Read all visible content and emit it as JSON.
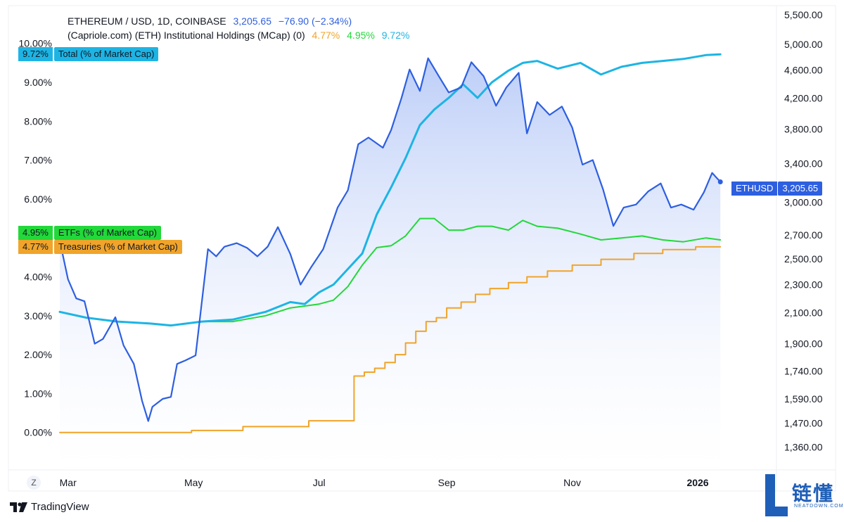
{
  "header": {
    "symbol": "ETHEREUM / USD, 1D, COINBASE",
    "price": "3,205.65",
    "change": "−76.90 (−2.34%)",
    "indicator": "(Capriole.com) (ETH) Institutional Holdings (MCap) (0)",
    "ind_treasuries": "4.77%",
    "ind_etfs": "4.95%",
    "ind_total": "9.72%"
  },
  "labels": {
    "total": {
      "value": "9.72%",
      "name": "Total (% of Market Cap)"
    },
    "etfs": {
      "value": "4.95%",
      "name": "ETFs (% of Market Cap)"
    },
    "treasuries": {
      "value": "4.77%",
      "name": "Treasuries (% of Market Cap)"
    },
    "price": {
      "name": "ETHUSD",
      "value": "3,205.65"
    }
  },
  "colors": {
    "price": "#2d5fe0",
    "total": "#1db4e4",
    "etfs": "#22d83a",
    "treasuries": "#f0a42a",
    "fill": "#c8d6fa"
  },
  "footer": {
    "brand": "TradingView",
    "z_button": "Z",
    "watermark_cn": "链懂",
    "watermark_en": "NEATDOWN.COM"
  },
  "chart_data": {
    "type": "line",
    "x_axis": {
      "ticks": [
        "Mar",
        "May",
        "Jul",
        "Sep",
        "Nov",
        "2026"
      ],
      "range": [
        "2025-02-25",
        "2026-01-15"
      ]
    },
    "left_axis": {
      "ticks": [
        "0.00%",
        "1.00%",
        "2.00%",
        "3.00%",
        "4.00%",
        "5.00%",
        "6.00%",
        "7.00%",
        "8.00%",
        "9.00%",
        "10.00%"
      ],
      "ylim": [
        0,
        10
      ]
    },
    "right_axis": {
      "scale": "log",
      "ticks": [
        "1,360.00",
        "1,470.00",
        "1,590.00",
        "1,740.00",
        "1,900.00",
        "2,100.00",
        "2,300.00",
        "2,500.00",
        "2,700.00",
        "3,000.00",
        "3,400.00",
        "3,800.00",
        "4,200.00",
        "4,600.00",
        "5,000.00",
        "5,500.00"
      ]
    },
    "series": [
      {
        "name": "ETHUSD",
        "axis": "right",
        "x": [
          "2025-02-25",
          "2025-03-01",
          "2025-03-05",
          "2025-03-09",
          "2025-03-14",
          "2025-03-18",
          "2025-03-24",
          "2025-03-28",
          "2025-04-02",
          "2025-04-06",
          "2025-04-09",
          "2025-04-11",
          "2025-04-16",
          "2025-04-20",
          "2025-04-23",
          "2025-04-27",
          "2025-05-02",
          "2025-05-08",
          "2025-05-12",
          "2025-05-16",
          "2025-05-22",
          "2025-05-27",
          "2025-06-01",
          "2025-06-06",
          "2025-06-11",
          "2025-06-17",
          "2025-06-22",
          "2025-06-27",
          "2025-07-03",
          "2025-07-10",
          "2025-07-15",
          "2025-07-20",
          "2025-07-25",
          "2025-08-01",
          "2025-08-05",
          "2025-08-10",
          "2025-08-14",
          "2025-08-19",
          "2025-08-23",
          "2025-08-28",
          "2025-09-02",
          "2025-09-08",
          "2025-09-13",
          "2025-09-19",
          "2025-09-25",
          "2025-09-30",
          "2025-10-06",
          "2025-10-10",
          "2025-10-15",
          "2025-10-21",
          "2025-10-27",
          "2025-11-01",
          "2025-11-06",
          "2025-11-11",
          "2025-11-16",
          "2025-11-21",
          "2025-11-26",
          "2025-12-02",
          "2025-12-08",
          "2025-12-14",
          "2025-12-19",
          "2025-12-24",
          "2025-12-30",
          "2026-01-04",
          "2026-01-08",
          "2026-01-12"
        ],
        "values": [
          2650,
          2340,
          2200,
          2180,
          1900,
          1930,
          2070,
          1890,
          1780,
          1580,
          1480,
          1550,
          1590,
          1600,
          1780,
          1800,
          1830,
          2580,
          2520,
          2600,
          2630,
          2590,
          2520,
          2600,
          2770,
          2540,
          2300,
          2430,
          2580,
          2950,
          3120,
          3620,
          3700,
          3580,
          3790,
          4200,
          4610,
          4300,
          4780,
          4520,
          4280,
          4350,
          4720,
          4510,
          4100,
          4350,
          4560,
          3750,
          4150,
          3980,
          4090,
          3820,
          3390,
          3440,
          3130,
          2780,
          2950,
          2980,
          3110,
          3190,
          2950,
          2980,
          2930,
          3100,
          3300,
          3205.65
        ]
      },
      {
        "name": "Total (% of Market Cap)",
        "axis": "left",
        "x": [
          "2025-02-25",
          "2025-03-10",
          "2025-03-25",
          "2025-04-10",
          "2025-04-20",
          "2025-05-05",
          "2025-05-20",
          "2025-06-05",
          "2025-06-17",
          "2025-06-24",
          "2025-07-01",
          "2025-07-08",
          "2025-07-15",
          "2025-07-22",
          "2025-07-29",
          "2025-08-05",
          "2025-08-12",
          "2025-08-19",
          "2025-08-26",
          "2025-09-02",
          "2025-09-09",
          "2025-09-16",
          "2025-09-23",
          "2025-10-01",
          "2025-10-08",
          "2025-10-15",
          "2025-10-25",
          "2025-11-05",
          "2025-11-15",
          "2025-11-25",
          "2025-12-05",
          "2025-12-15",
          "2025-12-25",
          "2026-01-05",
          "2026-01-12"
        ],
        "values": [
          3.1,
          2.95,
          2.85,
          2.8,
          2.75,
          2.85,
          2.9,
          3.1,
          3.35,
          3.3,
          3.6,
          3.8,
          4.2,
          4.6,
          5.6,
          6.3,
          7.05,
          7.9,
          8.3,
          8.6,
          8.95,
          8.6,
          9.0,
          9.3,
          9.5,
          9.55,
          9.35,
          9.5,
          9.2,
          9.4,
          9.5,
          9.55,
          9.6,
          9.7,
          9.72
        ]
      },
      {
        "name": "ETFs (% of Market Cap)",
        "axis": "left",
        "x": [
          "2025-02-25",
          "2025-03-10",
          "2025-03-25",
          "2025-04-10",
          "2025-04-20",
          "2025-05-05",
          "2025-05-20",
          "2025-06-05",
          "2025-06-17",
          "2025-06-24",
          "2025-07-01",
          "2025-07-08",
          "2025-07-15",
          "2025-07-22",
          "2025-07-29",
          "2025-08-05",
          "2025-08-12",
          "2025-08-19",
          "2025-08-26",
          "2025-09-02",
          "2025-09-09",
          "2025-09-16",
          "2025-09-23",
          "2025-10-01",
          "2025-10-08",
          "2025-10-15",
          "2025-10-25",
          "2025-11-05",
          "2025-11-15",
          "2025-11-25",
          "2025-12-05",
          "2025-12-15",
          "2025-12-25",
          "2026-01-05",
          "2026-01-12"
        ],
        "values": [
          3.1,
          2.95,
          2.85,
          2.8,
          2.75,
          2.85,
          2.85,
          3.0,
          3.2,
          3.25,
          3.3,
          3.4,
          3.75,
          4.3,
          4.75,
          4.8,
          5.05,
          5.5,
          5.5,
          5.2,
          5.2,
          5.3,
          5.3,
          5.2,
          5.45,
          5.3,
          5.25,
          5.1,
          4.95,
          5.0,
          5.05,
          4.95,
          4.9,
          5.0,
          4.95
        ]
      },
      {
        "name": "Treasuries (% of Market Cap)",
        "axis": "left",
        "x": [
          "2025-02-25",
          "2025-04-30",
          "2025-05-25",
          "2025-06-26",
          "2025-07-16",
          "2025-07-18",
          "2025-07-23",
          "2025-07-28",
          "2025-08-02",
          "2025-08-07",
          "2025-08-12",
          "2025-08-17",
          "2025-08-22",
          "2025-08-27",
          "2025-09-01",
          "2025-09-08",
          "2025-09-15",
          "2025-09-22",
          "2025-10-01",
          "2025-10-10",
          "2025-10-20",
          "2025-11-01",
          "2025-11-15",
          "2025-12-01",
          "2025-12-15",
          "2025-12-31",
          "2026-01-12"
        ],
        "values": [
          0.0,
          0.05,
          0.15,
          0.3,
          0.3,
          1.45,
          1.55,
          1.65,
          1.8,
          2.0,
          2.3,
          2.6,
          2.85,
          2.95,
          3.2,
          3.35,
          3.55,
          3.7,
          3.85,
          4.0,
          4.15,
          4.3,
          4.45,
          4.6,
          4.7,
          4.77,
          4.77
        ]
      }
    ]
  }
}
